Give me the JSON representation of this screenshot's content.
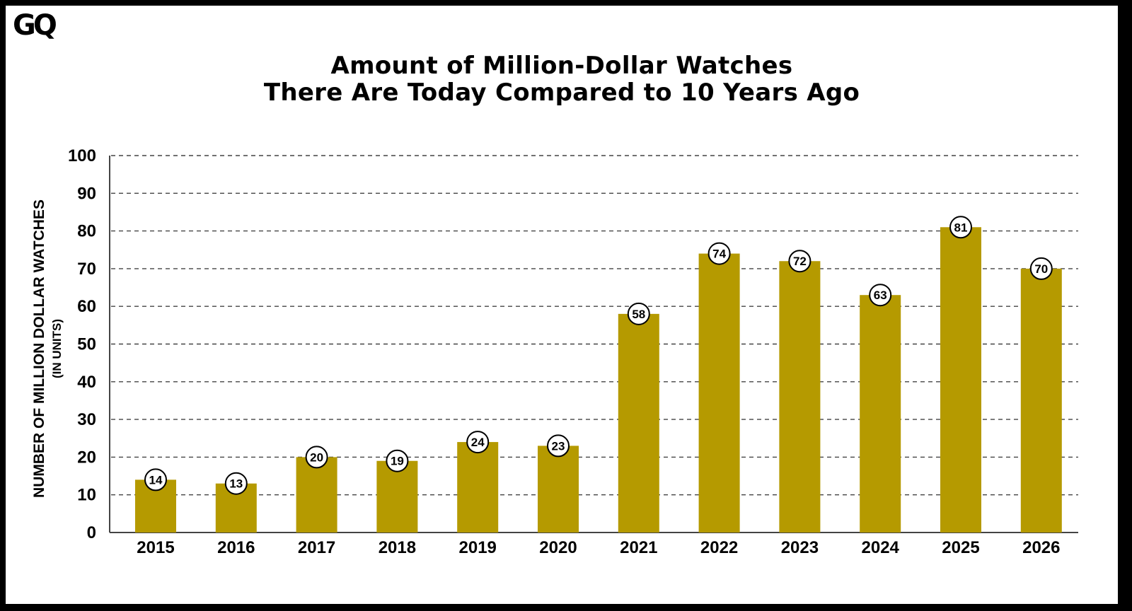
{
  "brand": {
    "logo_text": "GQ"
  },
  "colors": {
    "bar": "#b59a00",
    "grid": "#444444",
    "background": "#ffffff",
    "frame": "#000000"
  },
  "chart_data": {
    "type": "bar",
    "title_lines": [
      "Amount of Million-Dollar Watches",
      "There Are Today Compared to 10 Years Ago"
    ],
    "ylabel": "NUMBER OF MILLION DOLLAR WATCHES",
    "ylabel_sub": "(IN UNITS)",
    "xlabel": "",
    "categories": [
      "2015",
      "2016",
      "2017",
      "2018",
      "2019",
      "2020",
      "2021",
      "2022",
      "2023",
      "2024",
      "2025",
      "2026"
    ],
    "values": [
      14,
      13,
      20,
      19,
      24,
      23,
      58,
      74,
      72,
      63,
      81,
      70
    ],
    "ylim": [
      0,
      100
    ],
    "yticks": [
      0,
      10,
      20,
      30,
      40,
      50,
      60,
      70,
      80,
      90,
      100
    ],
    "grid": "horizontal dashed",
    "data_labels": "circled values at bar tops"
  }
}
